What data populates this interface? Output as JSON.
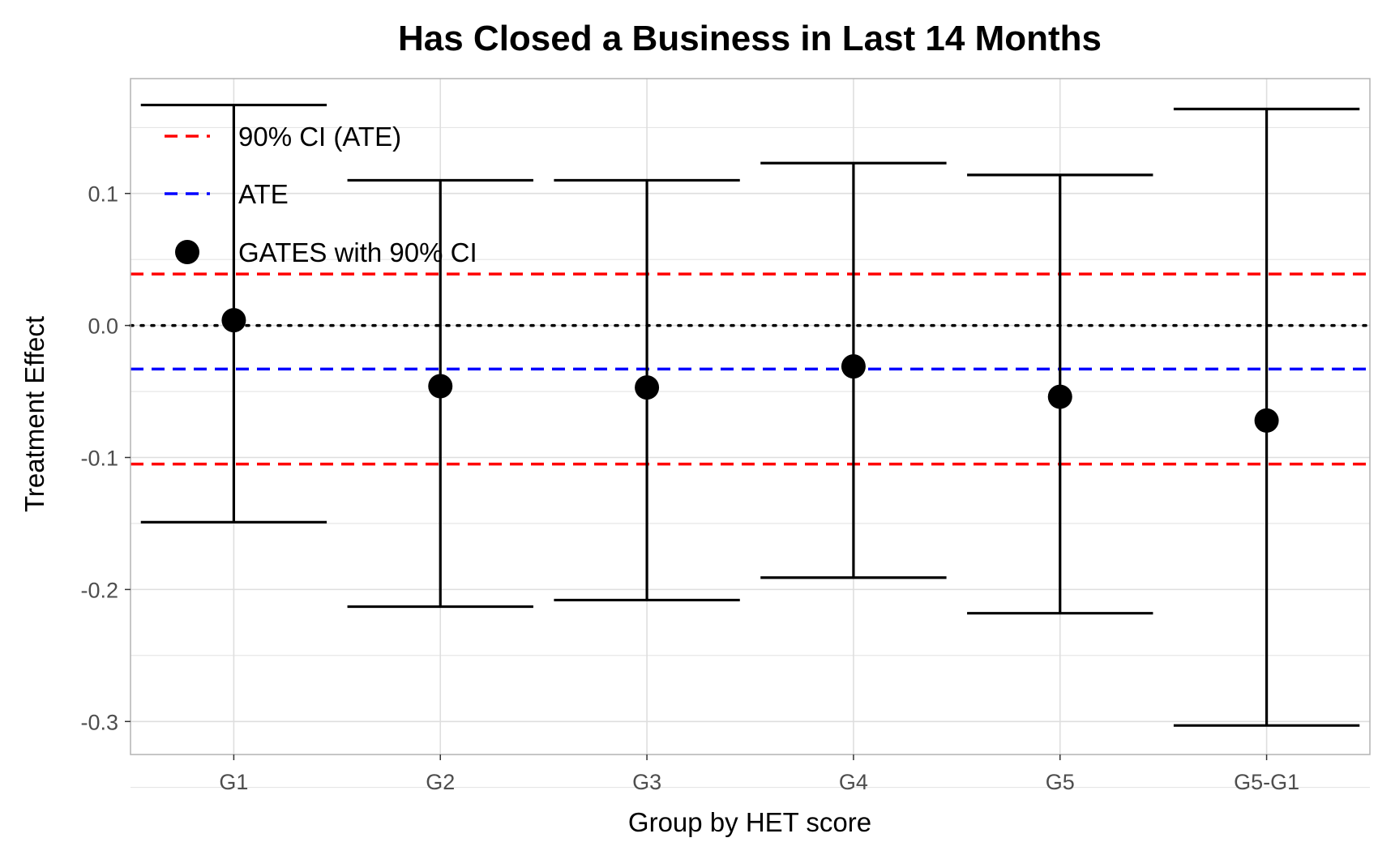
{
  "chart_data": {
    "type": "errorbar",
    "title": "Has Closed a Business in Last 14 Months",
    "xlabel": "Group by HET score",
    "ylabel": "Treatment Effect",
    "categories": [
      "G1",
      "G2",
      "G3",
      "G4",
      "G5",
      "G5-G1"
    ],
    "series": [
      {
        "name": "GATES with 90% CI",
        "estimates": [
          0.004,
          -0.046,
          -0.047,
          -0.031,
          -0.054,
          -0.072
        ],
        "ci_lower": [
          -0.149,
          -0.213,
          -0.208,
          -0.191,
          -0.218,
          -0.303
        ],
        "ci_upper": [
          0.167,
          0.11,
          0.11,
          0.123,
          0.114,
          0.164
        ]
      }
    ],
    "reference_lines": [
      {
        "name": "ATE",
        "value": -0.033,
        "color": "#0000ff",
        "style": "dashed"
      },
      {
        "name": "90% CI (ATE)",
        "value": 0.039,
        "color": "#ff0000",
        "style": "dashed"
      },
      {
        "name": "90% CI (ATE)",
        "value": -0.105,
        "color": "#ff0000",
        "style": "dashed"
      },
      {
        "name": "zero",
        "value": 0.0,
        "color": "#000000",
        "style": "dotted"
      }
    ],
    "yticks": [
      -0.3,
      -0.2,
      -0.1,
      0.0,
      0.1
    ],
    "ytick_labels": [
      "-0.3",
      "-0.2",
      "-0.1",
      "0.0",
      "0.1"
    ],
    "ylim": [
      -0.325,
      0.187
    ],
    "grid": true,
    "legend": {
      "position": "top-left",
      "entries": [
        {
          "label": "90% CI (ATE)",
          "kind": "dashed-line",
          "color": "#ff0000"
        },
        {
          "label": "ATE",
          "kind": "dashed-line",
          "color": "#0000ff"
        },
        {
          "label": "GATES with 90% CI",
          "kind": "point",
          "color": "#000000"
        }
      ]
    }
  }
}
